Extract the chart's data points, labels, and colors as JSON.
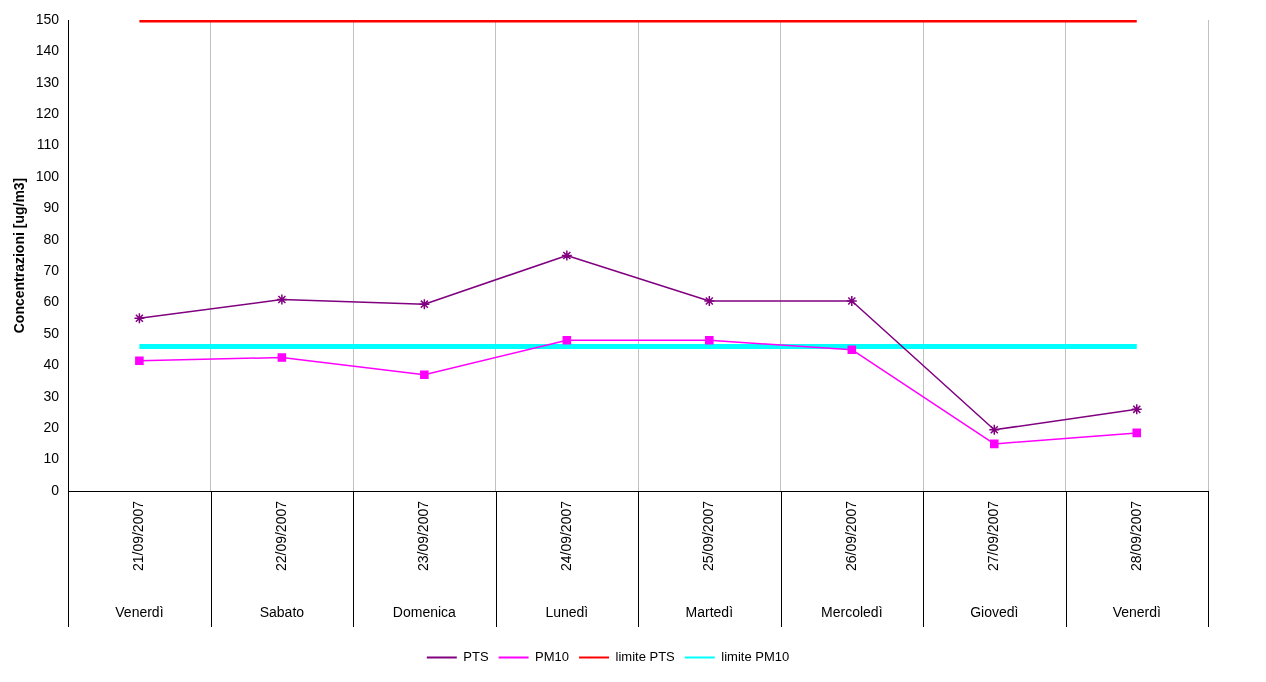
{
  "chart_data": {
    "type": "line",
    "ylabel": "Concentrazioni [ug/m3]",
    "categories": [
      "21/09/2007\nVenerdì",
      "22/09/2007\nSabato",
      "23/09/2007\nDomenica",
      "24/09/2007\nLunedì",
      "25/09/2007\nMartedì",
      "26/09/2007\nMercoledì",
      "27/09/2007\nGiovedì",
      "28/09/2007\nVenerdì"
    ],
    "series": [
      {
        "name": "PTS",
        "color": "#800080",
        "marker": "cross",
        "values": [
          55,
          61,
          59.5,
          75,
          60.5,
          60.5,
          19.5,
          26
        ]
      },
      {
        "name": "PM10",
        "color": "#ff00ff",
        "marker": "square",
        "values": [
          41.5,
          42.5,
          37,
          48,
          48,
          45,
          15,
          18.5
        ]
      },
      {
        "name": "limite PTS",
        "color": "#ff0000",
        "marker": "none",
        "values": [
          150,
          150,
          150,
          150,
          150,
          150,
          150,
          150
        ]
      },
      {
        "name": "limite PM10",
        "color": "#00ffff",
        "marker": "none",
        "values": [
          46,
          46,
          46,
          46,
          46,
          46,
          46,
          46
        ]
      }
    ],
    "ylim": [
      0,
      150
    ],
    "yticks": [
      0,
      10,
      20,
      30,
      40,
      50,
      60,
      70,
      80,
      90,
      100,
      110,
      120,
      130,
      140,
      150
    ],
    "grid": "x",
    "legend": "bottom"
  }
}
